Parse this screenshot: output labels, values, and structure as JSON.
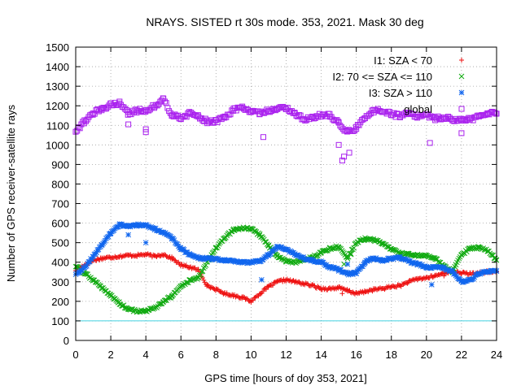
{
  "chart_data": {
    "type": "scatter",
    "title": "NRAYS. SISTED rt 30s mode. 353, 2021. Mask 30 deg",
    "xlabel": "GPS time [hours of doy 353, 2021]",
    "ylabel": "Number of GPS receiver-satellite rays",
    "xlim": [
      0,
      24
    ],
    "ylim": [
      0,
      1500
    ],
    "xticks": [
      0,
      2,
      4,
      6,
      8,
      10,
      12,
      14,
      16,
      18,
      20,
      22,
      24
    ],
    "yticks": [
      0,
      100,
      200,
      300,
      400,
      500,
      600,
      700,
      800,
      900,
      1000,
      1100,
      1200,
      1300,
      1400,
      1500
    ],
    "grid": true,
    "legend_position": "top-right",
    "reference_line": {
      "y": 100,
      "color": "#40d0e0"
    },
    "series": [
      {
        "name": "I1: SZA < 70",
        "marker": "+",
        "color": "#ee1111",
        "x": [
          0.0,
          0.5,
          1.0,
          1.5,
          2.0,
          2.5,
          3.0,
          3.5,
          4.0,
          4.5,
          5.0,
          5.5,
          6.0,
          6.5,
          7.0,
          7.5,
          8.0,
          8.5,
          9.0,
          9.5,
          10.0,
          10.5,
          11.0,
          11.5,
          12.0,
          12.5,
          13.0,
          13.5,
          14.0,
          14.5,
          15.0,
          15.5,
          16.0,
          16.5,
          17.0,
          17.5,
          18.0,
          18.5,
          19.0,
          19.5,
          20.0,
          20.5,
          21.0,
          21.5,
          22.0,
          22.5,
          23.0,
          23.5,
          24.0
        ],
        "y": [
          360,
          385,
          410,
          420,
          425,
          430,
          435,
          435,
          440,
          430,
          440,
          420,
          385,
          375,
          360,
          280,
          260,
          240,
          230,
          220,
          200,
          240,
          275,
          300,
          310,
          300,
          290,
          280,
          265,
          265,
          270,
          255,
          240,
          250,
          260,
          265,
          275,
          280,
          300,
          315,
          320,
          330,
          345,
          355,
          345,
          340,
          345,
          350,
          350
        ]
      },
      {
        "name": "I2: 70 <= SZA <= 110",
        "marker": "x",
        "color": "#11aa11",
        "x": [
          0.0,
          0.5,
          1.0,
          1.5,
          2.0,
          2.5,
          3.0,
          3.5,
          4.0,
          4.5,
          5.0,
          5.5,
          6.0,
          6.5,
          7.0,
          7.5,
          8.0,
          8.5,
          9.0,
          9.5,
          10.0,
          10.5,
          11.0,
          11.5,
          12.0,
          12.5,
          13.0,
          13.5,
          14.0,
          14.5,
          15.0,
          15.5,
          16.0,
          16.5,
          17.0,
          17.5,
          18.0,
          18.5,
          19.0,
          19.5,
          20.0,
          20.5,
          21.0,
          21.5,
          22.0,
          22.5,
          23.0,
          23.5,
          24.0
        ],
        "y": [
          380,
          345,
          310,
          270,
          230,
          190,
          160,
          150,
          150,
          165,
          195,
          230,
          275,
          305,
          320,
          400,
          470,
          525,
          565,
          575,
          570,
          540,
          485,
          430,
          405,
          400,
          410,
          425,
          450,
          470,
          480,
          420,
          500,
          520,
          515,
          495,
          465,
          445,
          440,
          435,
          430,
          420,
          380,
          350,
          440,
          470,
          475,
          460,
          410
        ]
      },
      {
        "name": "I3: SZA > 110",
        "marker": "*",
        "color": "#1166ee",
        "x": [
          0.0,
          0.5,
          1.0,
          1.5,
          2.0,
          2.5,
          3.0,
          3.5,
          4.0,
          4.5,
          5.0,
          5.5,
          6.0,
          6.5,
          7.0,
          7.5,
          8.0,
          8.5,
          9.0,
          9.5,
          10.0,
          10.5,
          11.0,
          11.5,
          12.0,
          12.5,
          13.0,
          13.5,
          14.0,
          14.5,
          15.0,
          15.5,
          16.0,
          16.5,
          17.0,
          17.5,
          18.0,
          18.5,
          19.0,
          19.5,
          20.0,
          20.5,
          21.0,
          21.5,
          22.0,
          22.5,
          23.0,
          23.5,
          24.0
        ],
        "y": [
          340,
          370,
          430,
          490,
          550,
          590,
          585,
          590,
          590,
          570,
          555,
          520,
          470,
          440,
          420,
          420,
          415,
          410,
          405,
          400,
          400,
          405,
          440,
          480,
          465,
          440,
          420,
          410,
          400,
          375,
          360,
          340,
          345,
          400,
          420,
          410,
          420,
          425,
          405,
          390,
          375,
          375,
          370,
          350,
          300,
          310,
          340,
          355,
          355
        ]
      },
      {
        "name": "global",
        "marker": "square",
        "color": "#aa22ee",
        "x": [
          0.0,
          0.5,
          1.0,
          1.5,
          2.0,
          2.5,
          3.0,
          3.5,
          4.0,
          4.5,
          5.0,
          5.5,
          6.0,
          6.5,
          7.0,
          7.5,
          8.0,
          8.5,
          9.0,
          9.5,
          10.0,
          10.5,
          11.0,
          11.5,
          12.0,
          12.5,
          13.0,
          13.5,
          14.0,
          14.5,
          15.0,
          15.5,
          16.0,
          16.5,
          17.0,
          17.5,
          18.0,
          18.5,
          19.0,
          19.5,
          20.0,
          20.5,
          21.0,
          21.5,
          22.0,
          22.5,
          23.0,
          23.5,
          24.0
        ],
        "y": [
          1070,
          1120,
          1165,
          1180,
          1205,
          1215,
          1160,
          1175,
          1175,
          1200,
          1235,
          1150,
          1140,
          1160,
          1145,
          1120,
          1120,
          1140,
          1180,
          1190,
          1170,
          1160,
          1175,
          1185,
          1190,
          1160,
          1130,
          1140,
          1155,
          1150,
          1110,
          1065,
          1085,
          1140,
          1175,
          1175,
          1155,
          1150,
          1160,
          1145,
          1150,
          1135,
          1140,
          1130,
          1125,
          1130,
          1145,
          1165,
          1160
        ]
      }
    ],
    "outliers": {
      "global": [
        [
          3.0,
          1105
        ],
        [
          4.0,
          1065
        ],
        [
          4.0,
          1080
        ],
        [
          10.7,
          1040
        ],
        [
          15.0,
          1000
        ],
        [
          15.2,
          920
        ],
        [
          15.3,
          940
        ],
        [
          15.6,
          960
        ],
        [
          20.2,
          1010
        ],
        [
          22.0,
          1060
        ]
      ],
      "I3: SZA > 110": [
        [
          3.0,
          540
        ],
        [
          4.0,
          500
        ],
        [
          10.6,
          310
        ],
        [
          15.5,
          390
        ],
        [
          20.3,
          285
        ]
      ],
      "I2: 70 <= SZA <= 110": [
        [
          15.3,
          390
        ],
        [
          15.7,
          440
        ]
      ],
      "I1: SZA < 70": [
        [
          15.2,
          240
        ],
        [
          21.0,
          330
        ]
      ]
    }
  }
}
